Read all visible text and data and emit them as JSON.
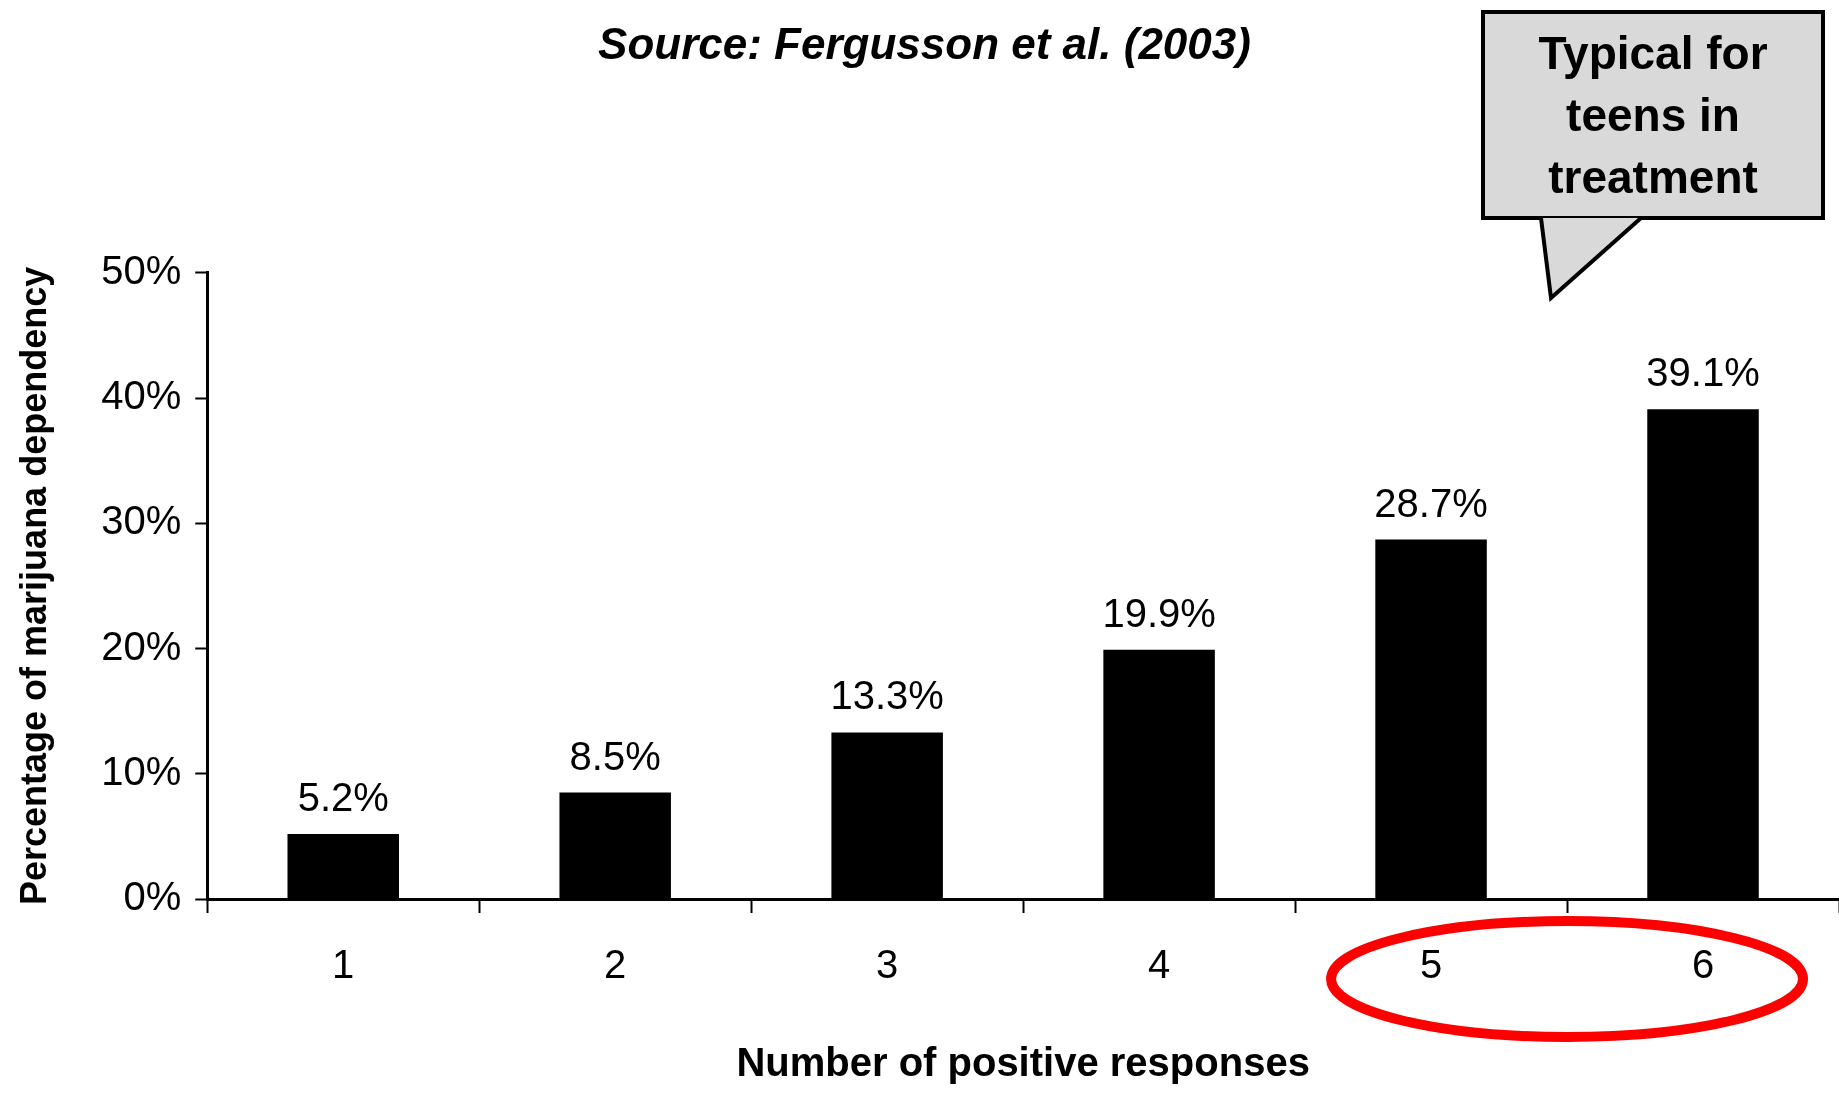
{
  "chart_data": {
    "type": "bar",
    "title": "Source: Fergusson et al. (2003)",
    "xlabel": "Number of positive responses",
    "ylabel": "Percentage of marijuana dependency",
    "categories": [
      "1",
      "2",
      "3",
      "4",
      "5",
      "6"
    ],
    "values": [
      5.2,
      8.5,
      13.3,
      19.9,
      28.7,
      39.1
    ],
    "color": "#000000",
    "value_labels": [
      "5.2%",
      "8.5%",
      "13.3%",
      "19.9%",
      "28.7%",
      "39.1%"
    ],
    "ylim": [
      0,
      50
    ],
    "yticks": [
      {
        "value": 0,
        "label": "0%"
      },
      {
        "value": 10,
        "label": "10%"
      },
      {
        "value": 20,
        "label": "20%"
      },
      {
        "value": 30,
        "label": "30%"
      },
      {
        "value": 40,
        "label": "40%"
      },
      {
        "value": 50,
        "label": "50%"
      }
    ],
    "grid": false,
    "legend": false,
    "annotations": [
      "Typical for teens in treatment"
    ]
  }
}
